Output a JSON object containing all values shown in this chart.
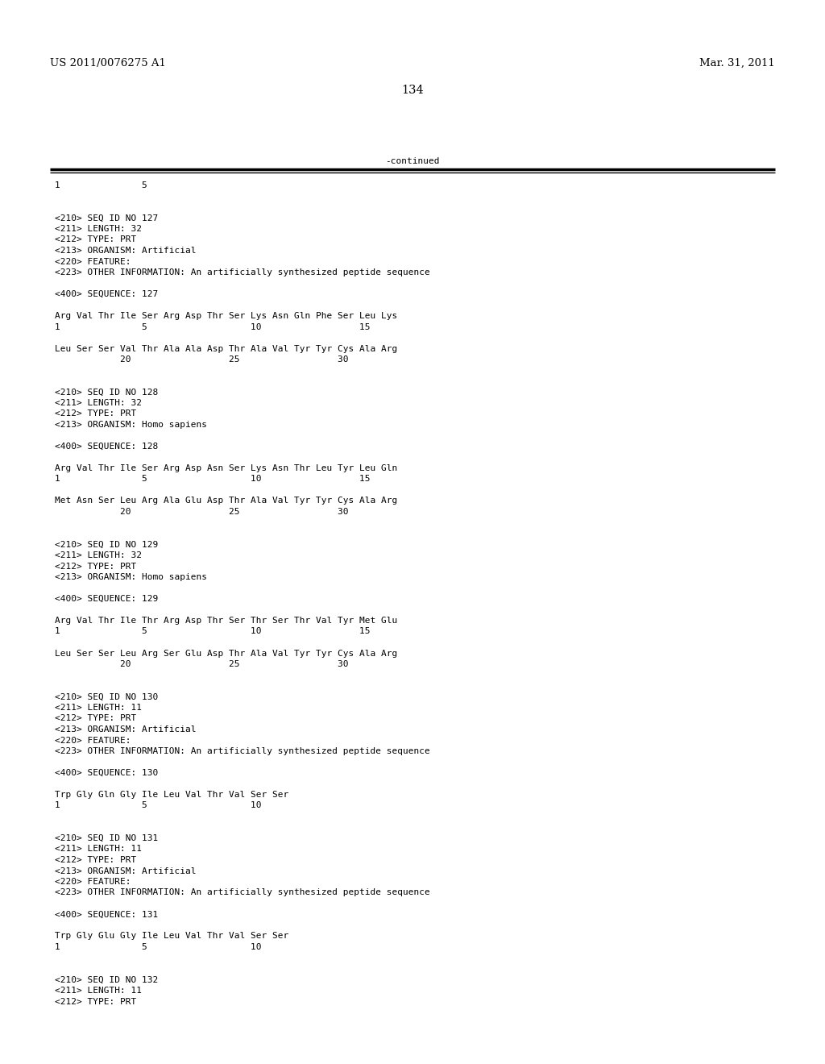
{
  "page_header_left": "US 2011/0076275 A1",
  "page_header_right": "Mar. 31, 2011",
  "page_number": "134",
  "continued_label": "-continued",
  "background_color": "#ffffff",
  "text_color": "#000000",
  "mono_font_size": 8.0,
  "header_font_size": 9.5,
  "page_num_font_size": 10.5,
  "lines": [
    "1               5",
    "",
    "",
    "<210> SEQ ID NO 127",
    "<211> LENGTH: 32",
    "<212> TYPE: PRT",
    "<213> ORGANISM: Artificial",
    "<220> FEATURE:",
    "<223> OTHER INFORMATION: An artificially synthesized peptide sequence",
    "",
    "<400> SEQUENCE: 127",
    "",
    "Arg Val Thr Ile Ser Arg Asp Thr Ser Lys Asn Gln Phe Ser Leu Lys",
    "1               5                   10                  15",
    "",
    "Leu Ser Ser Val Thr Ala Ala Asp Thr Ala Val Tyr Tyr Cys Ala Arg",
    "            20                  25                  30",
    "",
    "",
    "<210> SEQ ID NO 128",
    "<211> LENGTH: 32",
    "<212> TYPE: PRT",
    "<213> ORGANISM: Homo sapiens",
    "",
    "<400> SEQUENCE: 128",
    "",
    "Arg Val Thr Ile Ser Arg Asp Asn Ser Lys Asn Thr Leu Tyr Leu Gln",
    "1               5                   10                  15",
    "",
    "Met Asn Ser Leu Arg Ala Glu Asp Thr Ala Val Tyr Tyr Cys Ala Arg",
    "            20                  25                  30",
    "",
    "",
    "<210> SEQ ID NO 129",
    "<211> LENGTH: 32",
    "<212> TYPE: PRT",
    "<213> ORGANISM: Homo sapiens",
    "",
    "<400> SEQUENCE: 129",
    "",
    "Arg Val Thr Ile Thr Arg Asp Thr Ser Thr Ser Thr Val Tyr Met Glu",
    "1               5                   10                  15",
    "",
    "Leu Ser Ser Leu Arg Ser Glu Asp Thr Ala Val Tyr Tyr Cys Ala Arg",
    "            20                  25                  30",
    "",
    "",
    "<210> SEQ ID NO 130",
    "<211> LENGTH: 11",
    "<212> TYPE: PRT",
    "<213> ORGANISM: Artificial",
    "<220> FEATURE:",
    "<223> OTHER INFORMATION: An artificially synthesized peptide sequence",
    "",
    "<400> SEQUENCE: 130",
    "",
    "Trp Gly Gln Gly Ile Leu Val Thr Val Ser Ser",
    "1               5                   10",
    "",
    "",
    "<210> SEQ ID NO 131",
    "<211> LENGTH: 11",
    "<212> TYPE: PRT",
    "<213> ORGANISM: Artificial",
    "<220> FEATURE:",
    "<223> OTHER INFORMATION: An artificially synthesized peptide sequence",
    "",
    "<400> SEQUENCE: 131",
    "",
    "Trp Gly Glu Gly Ile Leu Val Thr Val Ser Ser",
    "1               5                   10",
    "",
    "",
    "<210> SEQ ID NO 132",
    "<211> LENGTH: 11",
    "<212> TYPE: PRT"
  ]
}
